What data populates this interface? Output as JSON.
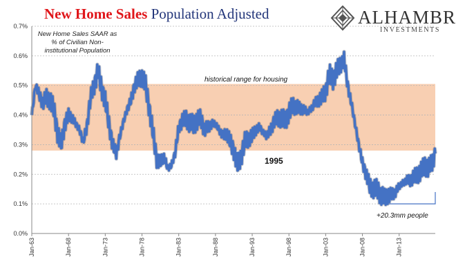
{
  "title": {
    "part1": "New Home Sales",
    "part2": "Population Adjusted"
  },
  "note": "New Home Sales SAAR as % of Civilian Non-institutional Population",
  "logo": {
    "name": "ALHAMBRA",
    "sub": "INVESTMENTS",
    "icon": "alhambra-crest-icon"
  },
  "annotations": {
    "range_label": "historical range for housing",
    "year_label": "1995",
    "people_label": "+20.3mm people"
  },
  "colors": {
    "line": "#4472c4",
    "range_band": "#f8cfb2",
    "title_red": "#e0161a",
    "title_blue": "#23367a"
  },
  "chart_data": {
    "type": "line",
    "x_start": "1963-01",
    "x_end": "2017-12",
    "xlim": [
      "1963-01",
      "2017-12"
    ],
    "ylim": [
      0,
      0.7
    ],
    "y_ticks": [
      "0.0%",
      "0.1%",
      "0.2%",
      "0.3%",
      "0.4%",
      "0.5%",
      "0.6%",
      "0.7%"
    ],
    "x_ticks": [
      "Jan-63",
      "Jan-68",
      "Jan-73",
      "Jan-78",
      "Jan-83",
      "Jan-88",
      "Jan-93",
      "Jan-98",
      "Jan-03",
      "Jan-08",
      "Jan-13"
    ],
    "grid": true,
    "range_band": [
      0.28,
      0.505
    ],
    "bracket": {
      "x": [
        "2010-07",
        "2017-12"
      ],
      "y": [
        0.1,
        0.14
      ]
    },
    "x": [
      "1963-01",
      "1963-07",
      "1964-01",
      "1964-07",
      "1965-01",
      "1965-07",
      "1966-01",
      "1966-07",
      "1967-01",
      "1967-07",
      "1968-01",
      "1968-07",
      "1969-01",
      "1969-07",
      "1970-01",
      "1970-07",
      "1971-01",
      "1971-07",
      "1972-01",
      "1972-07",
      "1973-01",
      "1973-07",
      "1974-01",
      "1974-07",
      "1975-01",
      "1975-07",
      "1976-01",
      "1976-07",
      "1977-01",
      "1977-07",
      "1978-01",
      "1978-07",
      "1979-01",
      "1979-07",
      "1980-01",
      "1980-07",
      "1981-01",
      "1981-07",
      "1982-01",
      "1982-07",
      "1983-01",
      "1983-07",
      "1984-01",
      "1984-07",
      "1985-01",
      "1985-07",
      "1986-01",
      "1986-07",
      "1987-01",
      "1987-07",
      "1988-01",
      "1988-07",
      "1989-01",
      "1989-07",
      "1990-01",
      "1990-07",
      "1991-01",
      "1991-07",
      "1992-01",
      "1992-07",
      "1993-01",
      "1993-07",
      "1994-01",
      "1994-07",
      "1995-01",
      "1995-07",
      "1996-01",
      "1996-07",
      "1997-01",
      "1997-07",
      "1998-01",
      "1998-07",
      "1999-01",
      "1999-07",
      "2000-01",
      "2000-07",
      "2001-01",
      "2001-07",
      "2002-01",
      "2002-07",
      "2003-01",
      "2003-07",
      "2004-01",
      "2004-07",
      "2005-01",
      "2005-07",
      "2006-01",
      "2006-07",
      "2007-01",
      "2007-07",
      "2008-01",
      "2008-07",
      "2009-01",
      "2009-07",
      "2010-01",
      "2010-07",
      "2011-01",
      "2011-07",
      "2012-01",
      "2012-07",
      "2013-01",
      "2013-07",
      "2014-01",
      "2014-07",
      "2015-01",
      "2015-07",
      "2016-01",
      "2016-07",
      "2017-01",
      "2017-07",
      "2017-12"
    ],
    "values": [
      0.4,
      0.5,
      0.47,
      0.44,
      0.46,
      0.45,
      0.42,
      0.34,
      0.3,
      0.37,
      0.4,
      0.39,
      0.37,
      0.35,
      0.31,
      0.36,
      0.46,
      0.5,
      0.55,
      0.49,
      0.45,
      0.37,
      0.3,
      0.27,
      0.33,
      0.38,
      0.42,
      0.45,
      0.5,
      0.52,
      0.53,
      0.5,
      0.42,
      0.34,
      0.25,
      0.24,
      0.26,
      0.22,
      0.23,
      0.27,
      0.36,
      0.38,
      0.39,
      0.37,
      0.37,
      0.38,
      0.39,
      0.35,
      0.36,
      0.37,
      0.37,
      0.35,
      0.33,
      0.34,
      0.31,
      0.28,
      0.23,
      0.26,
      0.31,
      0.32,
      0.33,
      0.35,
      0.36,
      0.34,
      0.33,
      0.35,
      0.38,
      0.39,
      0.39,
      0.38,
      0.41,
      0.43,
      0.43,
      0.42,
      0.42,
      0.41,
      0.42,
      0.44,
      0.45,
      0.46,
      0.48,
      0.54,
      0.52,
      0.55,
      0.57,
      0.59,
      0.5,
      0.44,
      0.37,
      0.3,
      0.24,
      0.2,
      0.16,
      0.15,
      0.15,
      0.13,
      0.12,
      0.13,
      0.13,
      0.14,
      0.16,
      0.17,
      0.18,
      0.18,
      0.19,
      0.2,
      0.21,
      0.23,
      0.22,
      0.24,
      0.27
    ]
  }
}
